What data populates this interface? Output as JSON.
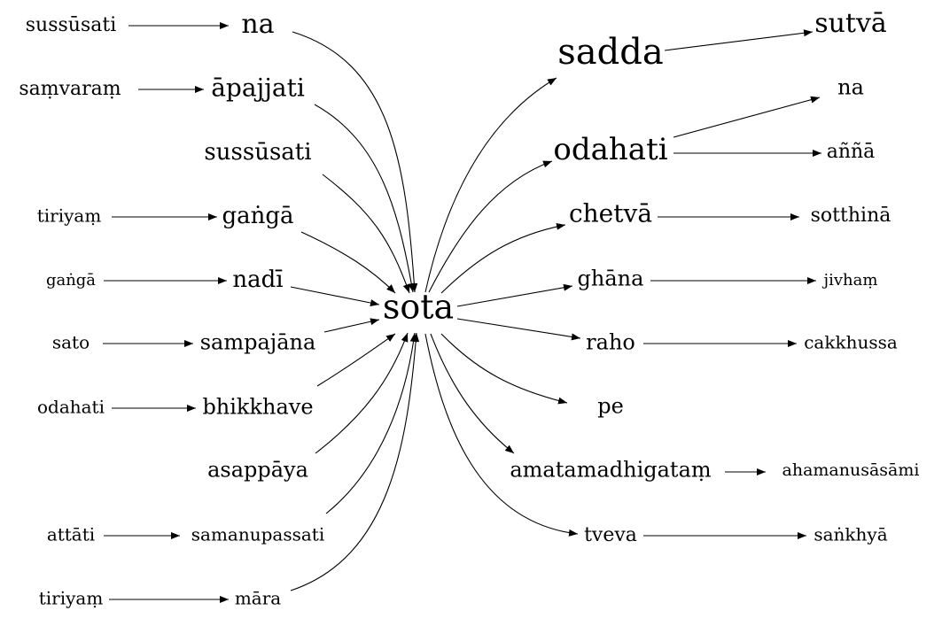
{
  "nodes": {
    "sota": "sota",
    "na_l": "na",
    "apajjati": "āpajjati",
    "sussusati_m": "sussūsati",
    "ganga_m": "gaṅgā",
    "nadi": "nadī",
    "sampajana": "sampajāna",
    "bhikkhave": "bhikkhave",
    "asappaya": "asappāya",
    "samanupassati": "samanupassati",
    "mara": "māra",
    "sussusati_l": "sussūsati",
    "samvaram": "saṃvaraṃ",
    "tiriyam_1": "tiriyaṃ",
    "ganga_l": "gaṅgā",
    "sato": "sato",
    "odahati_l": "odahati",
    "attati": "attāti",
    "tiriyam_2": "tiriyaṃ",
    "sadda": "sadda",
    "odahati_r": "odahati",
    "chetva": "chetvā",
    "ghana": "ghāna",
    "raho": "raho",
    "pe": "pe",
    "amatamadhigatam": "amatamadhigataṃ",
    "tveva": "tveva",
    "sutva": "sutvā",
    "na_r": "na",
    "anna": "aññā",
    "sotthina": "sotthinā",
    "jivham": "jivhaṃ",
    "cakkhussa": "cakkhussa",
    "ahamanusasami": "ahamanusāsāmi",
    "sankhya": "saṅkhyā"
  },
  "edges": [
    [
      "sussusati_l",
      "na_l"
    ],
    [
      "samvaram",
      "apajjati"
    ],
    [
      "tiriyam_1",
      "ganga_m"
    ],
    [
      "ganga_l",
      "nadi"
    ],
    [
      "sato",
      "sampajana"
    ],
    [
      "odahati_l",
      "bhikkhave"
    ],
    [
      "attati",
      "samanupassati"
    ],
    [
      "tiriyam_2",
      "mara"
    ],
    [
      "na_l",
      "sota"
    ],
    [
      "apajjati",
      "sota"
    ],
    [
      "sussusati_m",
      "sota"
    ],
    [
      "ganga_m",
      "sota"
    ],
    [
      "nadi",
      "sota"
    ],
    [
      "sampajana",
      "sota"
    ],
    [
      "bhikkhave",
      "sota"
    ],
    [
      "asappaya",
      "sota"
    ],
    [
      "samanupassati",
      "sota"
    ],
    [
      "mara",
      "sota"
    ],
    [
      "sota",
      "sadda"
    ],
    [
      "sota",
      "odahati_r"
    ],
    [
      "sota",
      "chetva"
    ],
    [
      "sota",
      "ghana"
    ],
    [
      "sota",
      "raho"
    ],
    [
      "sota",
      "pe"
    ],
    [
      "sota",
      "amatamadhigatam"
    ],
    [
      "sota",
      "tveva"
    ],
    [
      "sadda",
      "sutva"
    ],
    [
      "odahati_r",
      "na_r"
    ],
    [
      "odahati_r",
      "anna"
    ],
    [
      "chetva",
      "sotthina"
    ],
    [
      "ghana",
      "jivham"
    ],
    [
      "raho",
      "cakkhussa"
    ],
    [
      "amatamadhigatam",
      "ahamanusasami"
    ],
    [
      "tveva",
      "sankhya"
    ]
  ]
}
